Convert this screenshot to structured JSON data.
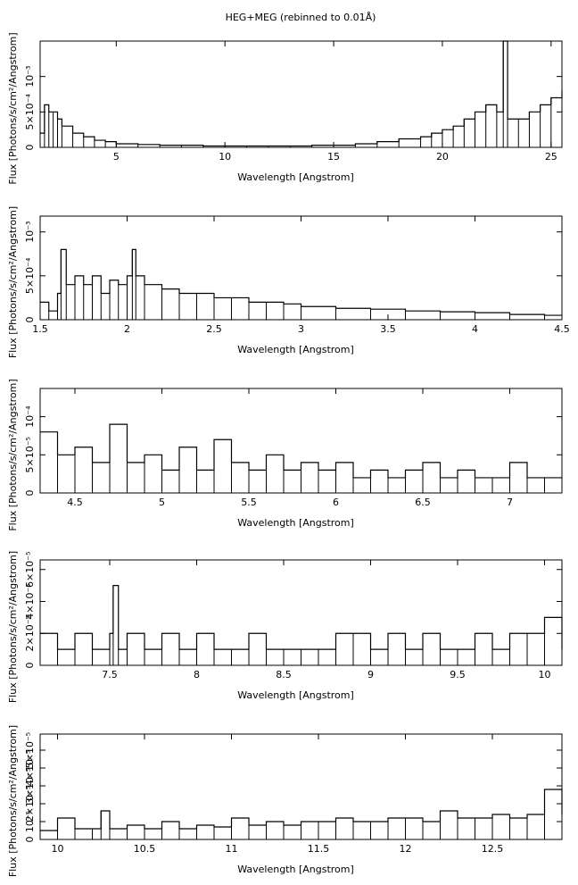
{
  "figure": {
    "title": "HEG+MEG (rebinned to 0.01Å)"
  },
  "chart_data": [
    {
      "type": "line",
      "step": true,
      "xlabel": "Wavelength [Angstrom]",
      "ylabel": "Flux [Photons/s/cm²/Angstrom]",
      "xlim": [
        1.5,
        25.5
      ],
      "ylim": [
        0,
        0.0015
      ],
      "x_ticks": [
        5,
        10,
        15,
        20,
        25
      ],
      "x_tick_labels": [
        "5",
        "10",
        "15",
        "20",
        "25"
      ],
      "y_ticks": [
        0,
        0.0005,
        0.001
      ],
      "y_tick_labels": [
        "0",
        "5×10⁻⁴",
        "10⁻³"
      ],
      "series": [
        {
          "x": [
            1.5,
            1.7,
            1.9,
            2.1,
            2.3,
            2.5,
            3.0,
            3.5,
            4.0,
            4.5,
            5.0,
            6.0,
            7.0,
            8.0,
            9.0,
            10.0,
            11.0,
            12.0,
            13.0,
            14.0,
            15.0,
            16.0,
            17.0,
            18.0,
            19.0,
            19.5,
            20.0,
            20.5,
            21.0,
            21.5,
            22.0,
            22.5,
            22.8,
            23.0,
            23.5,
            24.0,
            24.5,
            25.0,
            25.5
          ],
          "y": [
            0.0002,
            0.0006,
            0.0005,
            0.0005,
            0.0004,
            0.0003,
            0.0002,
            0.00015,
            0.0001,
            8e-05,
            5e-05,
            4e-05,
            3e-05,
            3e-05,
            2e-05,
            2e-05,
            2e-05,
            2e-05,
            2e-05,
            3e-05,
            3e-05,
            5e-05,
            8e-05,
            0.00012,
            0.00015,
            0.0002,
            0.00025,
            0.0003,
            0.0004,
            0.0005,
            0.0006,
            0.0005,
            0.0015,
            0.0004,
            0.0004,
            0.0005,
            0.0006,
            0.0007,
            0.0008
          ]
        }
      ]
    },
    {
      "type": "line",
      "step": true,
      "xlabel": "Wavelength [Angstrom]",
      "ylabel": "Flux [Photons/s/cm²/Angstrom]",
      "xlim": [
        1.5,
        4.5
      ],
      "ylim": [
        0,
        0.00118
      ],
      "x_ticks": [
        1.5,
        2,
        2.5,
        3,
        3.5,
        4,
        4.5
      ],
      "x_tick_labels": [
        "1.5",
        "2",
        "2.5",
        "3",
        "3.5",
        "4",
        "4.5"
      ],
      "y_ticks": [
        0,
        0.0005,
        0.001
      ],
      "y_tick_labels": [
        "0",
        "5×10⁻⁴",
        "10⁻³"
      ],
      "series": [
        {
          "x": [
            1.5,
            1.55,
            1.6,
            1.62,
            1.65,
            1.7,
            1.75,
            1.8,
            1.85,
            1.9,
            1.95,
            2.0,
            2.03,
            2.05,
            2.1,
            2.2,
            2.3,
            2.4,
            2.5,
            2.6,
            2.7,
            2.8,
            2.9,
            3.0,
            3.2,
            3.4,
            3.6,
            3.8,
            4.0,
            4.2,
            4.4,
            4.5
          ],
          "y": [
            0.0002,
            0.0001,
            0.0003,
            0.0008,
            0.0004,
            0.0005,
            0.0004,
            0.0005,
            0.0003,
            0.00045,
            0.0004,
            0.0005,
            0.0008,
            0.0005,
            0.0004,
            0.00035,
            0.0003,
            0.0003,
            0.00025,
            0.00025,
            0.0002,
            0.0002,
            0.00018,
            0.00015,
            0.00013,
            0.00012,
            0.0001,
            9e-05,
            8e-05,
            6e-05,
            5e-05,
            5e-05
          ]
        }
      ]
    },
    {
      "type": "line",
      "step": true,
      "xlabel": "Wavelength [Angstrom]",
      "ylabel": "Flux [Photons/s/cm²/Angstrom]",
      "xlim": [
        4.3,
        7.3
      ],
      "ylim": [
        0,
        0.000137
      ],
      "x_ticks": [
        4.5,
        5,
        5.5,
        6,
        6.5,
        7
      ],
      "x_tick_labels": [
        "4.5",
        "5",
        "5.5",
        "6",
        "6.5",
        "7"
      ],
      "y_ticks": [
        0,
        5e-05,
        0.0001
      ],
      "y_tick_labels": [
        "0",
        "5×10⁻⁵",
        "10⁻⁴"
      ],
      "series": [
        {
          "x": [
            4.3,
            4.4,
            4.5,
            4.6,
            4.7,
            4.8,
            4.9,
            5.0,
            5.1,
            5.2,
            5.3,
            5.4,
            5.5,
            5.6,
            5.7,
            5.8,
            5.9,
            6.0,
            6.1,
            6.2,
            6.3,
            6.4,
            6.5,
            6.6,
            6.7,
            6.8,
            6.9,
            7.0,
            7.1,
            7.2,
            7.3
          ],
          "y": [
            8e-05,
            5e-05,
            6e-05,
            4e-05,
            9e-05,
            4e-05,
            5e-05,
            3e-05,
            6e-05,
            3e-05,
            7e-05,
            4e-05,
            3e-05,
            5e-05,
            3e-05,
            4e-05,
            3e-05,
            4e-05,
            2e-05,
            3e-05,
            2e-05,
            3e-05,
            4e-05,
            2e-05,
            3e-05,
            2e-05,
            2e-05,
            4e-05,
            2e-05,
            2e-05,
            2e-05
          ]
        }
      ]
    },
    {
      "type": "line",
      "step": true,
      "xlabel": "Wavelength [Angstrom]",
      "ylabel": "Flux [Photons/s/cm²/Angstrom]",
      "xlim": [
        7.1,
        10.1
      ],
      "ylim": [
        0,
        6.6e-05
      ],
      "x_ticks": [
        7.5,
        8,
        8.5,
        9,
        9.5,
        10
      ],
      "x_tick_labels": [
        "7.5",
        "8",
        "8.5",
        "9",
        "9.5",
        "10"
      ],
      "y_ticks": [
        0,
        2e-05,
        4e-05,
        6e-05
      ],
      "y_tick_labels": [
        "0",
        "2×10⁻⁵",
        "4×10⁻⁵",
        "6×10⁻⁵"
      ],
      "series": [
        {
          "x": [
            7.1,
            7.2,
            7.3,
            7.4,
            7.5,
            7.52,
            7.55,
            7.6,
            7.7,
            7.8,
            7.9,
            8.0,
            8.1,
            8.2,
            8.3,
            8.4,
            8.5,
            8.6,
            8.7,
            8.8,
            8.9,
            9.0,
            9.1,
            9.2,
            9.3,
            9.4,
            9.5,
            9.6,
            9.7,
            9.8,
            9.9,
            10.0,
            10.1
          ],
          "y": [
            2e-05,
            1e-05,
            2e-05,
            1e-05,
            2e-05,
            5e-05,
            1e-05,
            2e-05,
            1e-05,
            2e-05,
            1e-05,
            2e-05,
            1e-05,
            1e-05,
            2e-05,
            1e-05,
            1e-05,
            1e-05,
            1e-05,
            2e-05,
            2e-05,
            1e-05,
            2e-05,
            1e-05,
            2e-05,
            1e-05,
            1e-05,
            2e-05,
            1e-05,
            2e-05,
            2e-05,
            3e-05,
            1e-05
          ]
        }
      ]
    },
    {
      "type": "line",
      "step": true,
      "xlabel": "Wavelength [Angstrom]",
      "ylabel": "Flux [Photons/s/cm²/Angstrom]",
      "xlim": [
        9.9,
        12.9
      ],
      "ylim": [
        0,
        5.9e-05
      ],
      "x_ticks": [
        10,
        10.5,
        11,
        11.5,
        12,
        12.5
      ],
      "x_tick_labels": [
        "10",
        "10.5",
        "11",
        "11.5",
        "12",
        "12.5"
      ],
      "y_ticks": [
        0,
        1e-05,
        2e-05,
        3e-05,
        4e-05,
        5e-05
      ],
      "y_tick_labels": [
        "0",
        "10⁻⁵",
        "2×10⁻⁵",
        "3×10⁻⁵",
        "4×10⁻⁵",
        "5×10⁻⁵"
      ],
      "series": [
        {
          "x": [
            9.9,
            10.0,
            10.1,
            10.2,
            10.25,
            10.3,
            10.4,
            10.5,
            10.6,
            10.7,
            10.8,
            10.9,
            11.0,
            11.1,
            11.2,
            11.3,
            11.4,
            11.5,
            11.6,
            11.7,
            11.8,
            11.9,
            12.0,
            12.1,
            12.2,
            12.3,
            12.4,
            12.5,
            12.6,
            12.7,
            12.8,
            12.9
          ],
          "y": [
            5e-06,
            1.2e-05,
            6e-06,
            6e-06,
            1.6e-05,
            6e-06,
            8e-06,
            6e-06,
            1e-05,
            6e-06,
            8e-06,
            7e-06,
            1.2e-05,
            8e-06,
            1e-05,
            8e-06,
            1e-05,
            1e-05,
            1.2e-05,
            1e-05,
            1e-05,
            1.2e-05,
            1.2e-05,
            1e-05,
            1.6e-05,
            1.2e-05,
            1.2e-05,
            1.4e-05,
            1.2e-05,
            1.4e-05,
            2.8e-05,
            1.4e-05
          ]
        }
      ]
    }
  ]
}
